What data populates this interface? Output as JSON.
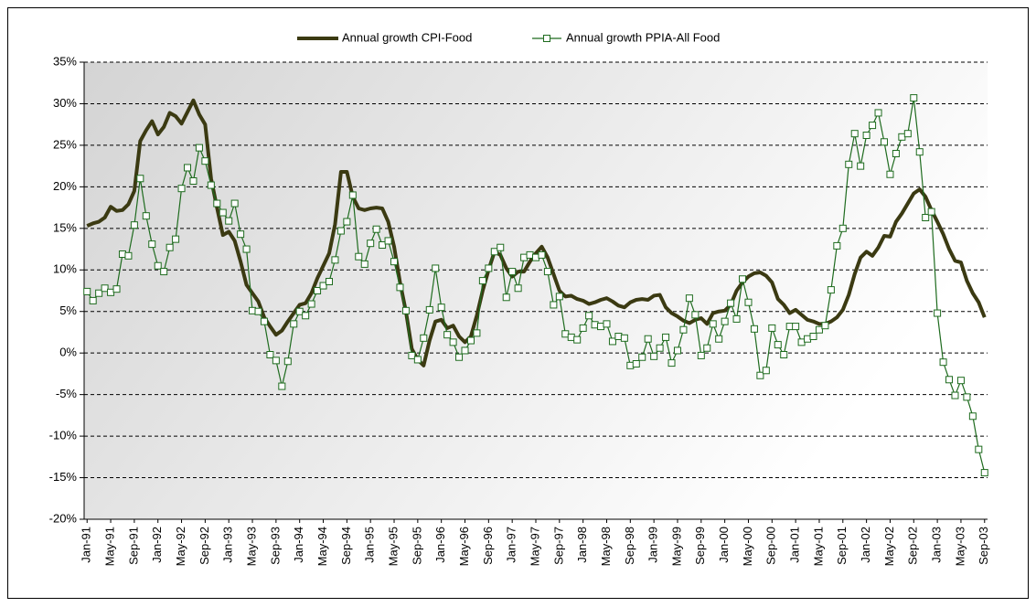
{
  "chart_data": {
    "type": "line",
    "categories": [
      "Jan-91",
      null,
      null,
      null,
      "May-91",
      null,
      null,
      null,
      "Sep-91",
      null,
      null,
      null,
      "Jan-92",
      null,
      null,
      null,
      "May-92",
      null,
      null,
      null,
      "Sep-92",
      null,
      null,
      null,
      "Jan-93",
      null,
      null,
      null,
      "May-93",
      null,
      null,
      null,
      "Sep-93",
      null,
      null,
      null,
      "Jan-94",
      null,
      null,
      null,
      "May-94",
      null,
      null,
      null,
      "Sep-94",
      null,
      null,
      null,
      "Jan-95",
      null,
      null,
      null,
      "May-95",
      null,
      null,
      null,
      "Sep-95",
      null,
      null,
      null,
      "Jan-96",
      null,
      null,
      null,
      "May-96",
      null,
      null,
      null,
      "Sep-96",
      null,
      null,
      null,
      "Jan-97",
      null,
      null,
      null,
      "May-97",
      null,
      null,
      null,
      "Sep-97",
      null,
      null,
      null,
      "Jan-98",
      null,
      null,
      null,
      "May-98",
      null,
      null,
      null,
      "Sep-98",
      null,
      null,
      null,
      "Jan-99",
      null,
      null,
      null,
      "May-99",
      null,
      null,
      null,
      "Sep-99",
      null,
      null,
      null,
      "Jan-00",
      null,
      null,
      null,
      "May-00",
      null,
      null,
      null,
      "Sep-00",
      null,
      null,
      null,
      "Jan-01",
      null,
      null,
      null,
      "May-01",
      null,
      null,
      null,
      "Sep-01",
      null,
      null,
      null,
      "Jan-02",
      null,
      null,
      null,
      "May-02",
      null,
      null,
      null,
      "Sep-02",
      null,
      null,
      null,
      "Jan-03",
      null,
      null,
      null,
      "May-03",
      null,
      null,
      null,
      "Sep-03"
    ],
    "series": [
      {
        "name": "Annual growth CPI-Food",
        "color": "#3b3a12",
        "marker": false,
        "values": [
          15.3,
          15.6,
          15.8,
          16.3,
          17.6,
          17.1,
          17.2,
          17.9,
          19.5,
          25.5,
          26.8,
          27.9,
          26.3,
          27.2,
          28.9,
          28.5,
          27.6,
          29.0,
          30.4,
          28.7,
          27.5,
          21.0,
          17.5,
          14.2,
          14.6,
          13.5,
          11.0,
          8.2,
          7.2,
          6.2,
          4.3,
          3.2,
          2.2,
          2.7,
          3.8,
          4.8,
          5.8,
          6.0,
          7.2,
          9.0,
          10.5,
          12.0,
          15.5,
          21.8,
          21.8,
          18.8,
          17.4,
          17.2,
          17.4,
          17.5,
          17.4,
          15.8,
          12.8,
          8.5,
          5.0,
          0.5,
          -0.8,
          -1.5,
          1.5,
          3.8,
          4.0,
          3.0,
          3.3,
          2.0,
          1.3,
          2.0,
          4.5,
          7.5,
          10.0,
          12.2,
          11.8,
          10.2,
          9.2,
          9.8,
          9.8,
          11.0,
          12.0,
          12.8,
          11.5,
          9.5,
          7.5,
          6.8,
          6.9,
          6.5,
          6.3,
          5.9,
          6.1,
          6.4,
          6.6,
          6.2,
          5.7,
          5.5,
          6.1,
          6.4,
          6.5,
          6.4,
          6.9,
          7.0,
          5.5,
          4.8,
          4.4,
          3.9,
          3.6,
          4.0,
          4.2,
          3.5,
          4.8,
          5.0,
          5.1,
          5.8,
          7.5,
          8.5,
          9.2,
          9.6,
          9.7,
          9.3,
          8.5,
          6.5,
          5.8,
          4.8,
          5.2,
          4.6,
          4.0,
          3.8,
          3.5,
          3.5,
          3.8,
          4.3,
          5.2,
          7.0,
          9.5,
          11.5,
          12.2,
          11.7,
          12.7,
          14.1,
          14.0,
          15.8,
          16.8,
          18.0,
          19.2,
          19.7,
          18.8,
          17.2,
          15.8,
          14.3,
          12.5,
          11.1,
          10.9,
          8.7,
          7.2,
          6.1,
          4.3
        ]
      },
      {
        "name": "Annual growth PPIA-All Food",
        "color": "#1e6b1e",
        "marker": true,
        "values": [
          7.4,
          6.3,
          7.2,
          7.8,
          7.3,
          7.7,
          11.9,
          11.7,
          15.4,
          21.0,
          16.5,
          13.1,
          10.5,
          9.8,
          12.7,
          13.7,
          19.8,
          22.3,
          20.7,
          24.7,
          23.1,
          20.2,
          18.0,
          16.9,
          15.9,
          18.0,
          14.3,
          12.5,
          5.1,
          5.0,
          3.8,
          -0.2,
          -0.9,
          -4.0,
          -1.0,
          3.5,
          5.0,
          4.5,
          5.9,
          7.5,
          8.1,
          8.6,
          11.2,
          14.7,
          15.8,
          19.0,
          11.6,
          10.7,
          13.2,
          14.9,
          13.0,
          13.5,
          11.0,
          7.9,
          5.1,
          -0.3,
          -0.8,
          1.8,
          5.2,
          10.2,
          5.5,
          2.2,
          1.3,
          -0.5,
          0.3,
          1.5,
          2.4,
          8.7,
          10.2,
          12.2,
          12.7,
          6.7,
          9.8,
          7.8,
          11.5,
          11.8,
          11.5,
          11.8,
          9.8,
          5.8,
          6.8,
          2.3,
          1.9,
          1.6,
          3.0,
          4.5,
          3.4,
          3.2,
          3.5,
          1.4,
          2.0,
          1.8,
          -1.5,
          -1.3,
          -0.5,
          1.7,
          -0.4,
          0.6,
          1.9,
          -1.2,
          0.3,
          2.8,
          6.6,
          4.6,
          -0.3,
          0.6,
          3.5,
          1.7,
          3.8,
          6.0,
          4.1,
          8.9,
          6.1,
          2.9,
          -2.7,
          -2.1,
          3.0,
          1.0,
          -0.2,
          3.2,
          3.2,
          1.3,
          1.7,
          2.0,
          2.8,
          3.3,
          7.6,
          12.9,
          15.0,
          22.7,
          26.4,
          22.5,
          26.2,
          27.4,
          28.9,
          25.4,
          21.5,
          24.0,
          26.0,
          26.4,
          30.7,
          24.2,
          16.3,
          17.0,
          4.8,
          -1.1,
          -3.2,
          -5.1,
          -3.3,
          -5.3,
          -7.6,
          -11.6,
          -14.4
        ]
      }
    ],
    "ylim": [
      -20,
      35
    ],
    "yticks": [
      {
        "value": -20,
        "label": "-20%"
      },
      {
        "value": -15,
        "label": "-15%"
      },
      {
        "value": -10,
        "label": "-10%"
      },
      {
        "value": -5,
        "label": "-5%"
      },
      {
        "value": 0,
        "label": "0%"
      },
      {
        "value": 5,
        "label": "5%"
      },
      {
        "value": 10,
        "label": "10%"
      },
      {
        "value": 15,
        "label": "15%"
      },
      {
        "value": 20,
        "label": "20%"
      },
      {
        "value": 25,
        "label": "25%"
      },
      {
        "value": 30,
        "label": "30%"
      },
      {
        "value": 35,
        "label": "35%"
      }
    ],
    "grid": true,
    "legend": "top"
  }
}
